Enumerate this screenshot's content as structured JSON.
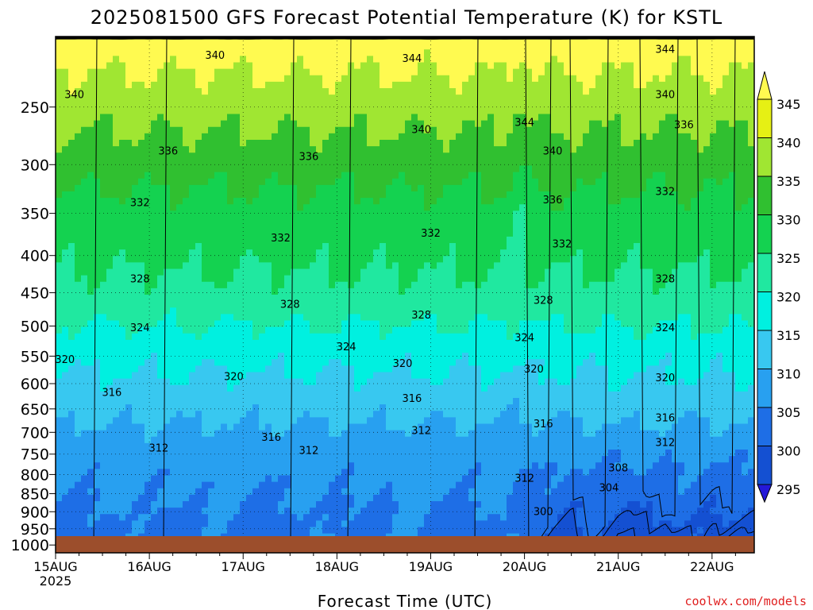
{
  "chart_data": {
    "type": "heatmap",
    "title": "2025081500 GFS Forecast Potential Temperature (K) for KSTL",
    "xlabel": "Forecast Time (UTC)",
    "ylabel": "",
    "credit": "coolwx.com/models",
    "x_ticks": [
      "15AUG",
      "16AUG",
      "17AUG",
      "18AUG",
      "19AUG",
      "20AUG",
      "21AUG",
      "22AUG"
    ],
    "x_year_label": "2025",
    "x_range_days": [
      0,
      7.45
    ],
    "y_ticks": [
      250,
      300,
      350,
      400,
      450,
      500,
      550,
      600,
      650,
      700,
      750,
      800,
      850,
      900,
      950,
      1000
    ],
    "y_range_hPa": [
      200,
      1025
    ],
    "y_scale": "log-pressure (reversed)",
    "colorbar": {
      "levels": [
        295,
        300,
        305,
        310,
        315,
        320,
        325,
        330,
        335,
        340,
        345
      ],
      "colors": [
        "#2418d8",
        "#0000b4",
        "#1450d2",
        "#1e6ee6",
        "#28a0f0",
        "#38c8f0",
        "#00f0e0",
        "#20e8a0",
        "#14d250",
        "#30c030",
        "#a0e632",
        "#e6f014",
        "#fffa50"
      ]
    },
    "contour_labels": [
      {
        "value": 340,
        "day": 1.7,
        "hPa": 212
      },
      {
        "value": 344,
        "day": 3.8,
        "hPa": 214
      },
      {
        "value": 344,
        "day": 6.5,
        "hPa": 208
      },
      {
        "value": 340,
        "day": 0.2,
        "hPa": 240
      },
      {
        "value": 344,
        "day": 5.0,
        "hPa": 262
      },
      {
        "value": 340,
        "day": 3.9,
        "hPa": 268
      },
      {
        "value": 340,
        "day": 6.5,
        "hPa": 240
      },
      {
        "value": 340,
        "day": 5.3,
        "hPa": 287
      },
      {
        "value": 336,
        "day": 6.7,
        "hPa": 264
      },
      {
        "value": 336,
        "day": 1.2,
        "hPa": 287
      },
      {
        "value": 336,
        "day": 2.7,
        "hPa": 292
      },
      {
        "value": 336,
        "day": 5.3,
        "hPa": 335
      },
      {
        "value": 332,
        "day": 0.9,
        "hPa": 338
      },
      {
        "value": 332,
        "day": 6.5,
        "hPa": 326
      },
      {
        "value": 332,
        "day": 2.4,
        "hPa": 378
      },
      {
        "value": 332,
        "day": 4.0,
        "hPa": 372
      },
      {
        "value": 332,
        "day": 5.4,
        "hPa": 385
      },
      {
        "value": 328,
        "day": 0.9,
        "hPa": 430
      },
      {
        "value": 328,
        "day": 6.5,
        "hPa": 430
      },
      {
        "value": 328,
        "day": 2.5,
        "hPa": 466
      },
      {
        "value": 328,
        "day": 5.2,
        "hPa": 460
      },
      {
        "value": 328,
        "day": 3.9,
        "hPa": 482
      },
      {
        "value": 324,
        "day": 0.9,
        "hPa": 502
      },
      {
        "value": 324,
        "day": 6.5,
        "hPa": 502
      },
      {
        "value": 324,
        "day": 5.0,
        "hPa": 518
      },
      {
        "value": 324,
        "day": 3.1,
        "hPa": 533
      },
      {
        "value": 320,
        "day": 0.1,
        "hPa": 555
      },
      {
        "value": 320,
        "day": 3.7,
        "hPa": 562
      },
      {
        "value": 320,
        "day": 5.1,
        "hPa": 572
      },
      {
        "value": 320,
        "day": 1.9,
        "hPa": 586
      },
      {
        "value": 320,
        "day": 6.5,
        "hPa": 588
      },
      {
        "value": 316,
        "day": 0.6,
        "hPa": 616
      },
      {
        "value": 316,
        "day": 3.8,
        "hPa": 628
      },
      {
        "value": 316,
        "day": 6.5,
        "hPa": 668
      },
      {
        "value": 316,
        "day": 5.2,
        "hPa": 680
      },
      {
        "value": 312,
        "day": 3.9,
        "hPa": 695
      },
      {
        "value": 316,
        "day": 2.3,
        "hPa": 710
      },
      {
        "value": 312,
        "day": 1.1,
        "hPa": 735
      },
      {
        "value": 312,
        "day": 6.5,
        "hPa": 722
      },
      {
        "value": 312,
        "day": 2.7,
        "hPa": 740
      },
      {
        "value": 308,
        "day": 6.0,
        "hPa": 782
      },
      {
        "value": 312,
        "day": 5.0,
        "hPa": 808
      },
      {
        "value": 304,
        "day": 5.9,
        "hPa": 833
      },
      {
        "value": 300,
        "day": 5.2,
        "hPa": 898
      }
    ]
  }
}
